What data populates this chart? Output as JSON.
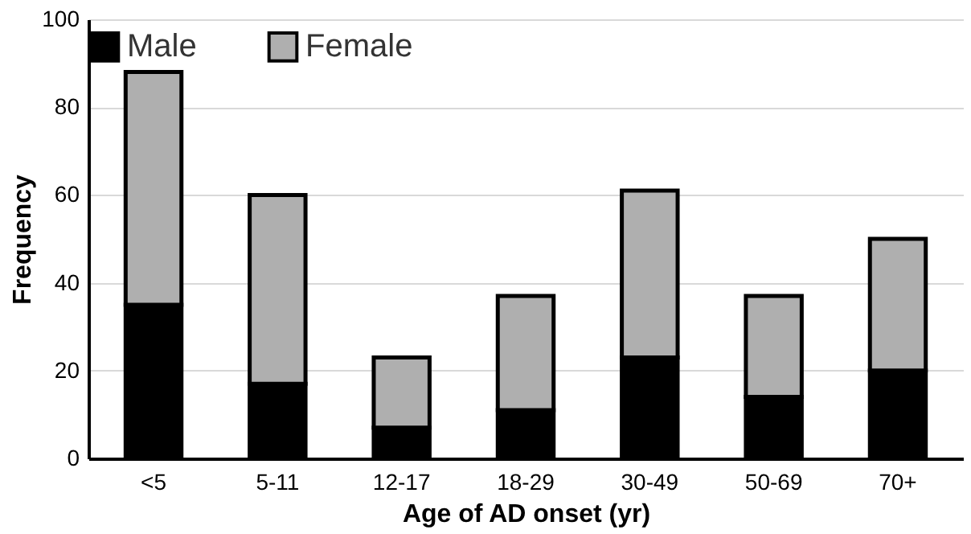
{
  "chart_data": {
    "type": "bar",
    "stacked": true,
    "xlabel": "Age of AD onset (yr)",
    "ylabel": "Frequency",
    "categories": [
      "<5",
      "5-11",
      "12-17",
      "18-29",
      "30-49",
      "50-69",
      "70+"
    ],
    "series": [
      {
        "name": "Male",
        "color": "#000000",
        "values": [
          35,
          17,
          7,
          11,
          23,
          14,
          20
        ]
      },
      {
        "name": "Female",
        "color": "#afafaf",
        "values": [
          53,
          43,
          16,
          26,
          38,
          23,
          30
        ]
      }
    ],
    "ylim": [
      0,
      100
    ],
    "yticks": [
      0,
      20,
      40,
      60,
      80,
      100
    ],
    "grid": "y",
    "legend": "top"
  }
}
